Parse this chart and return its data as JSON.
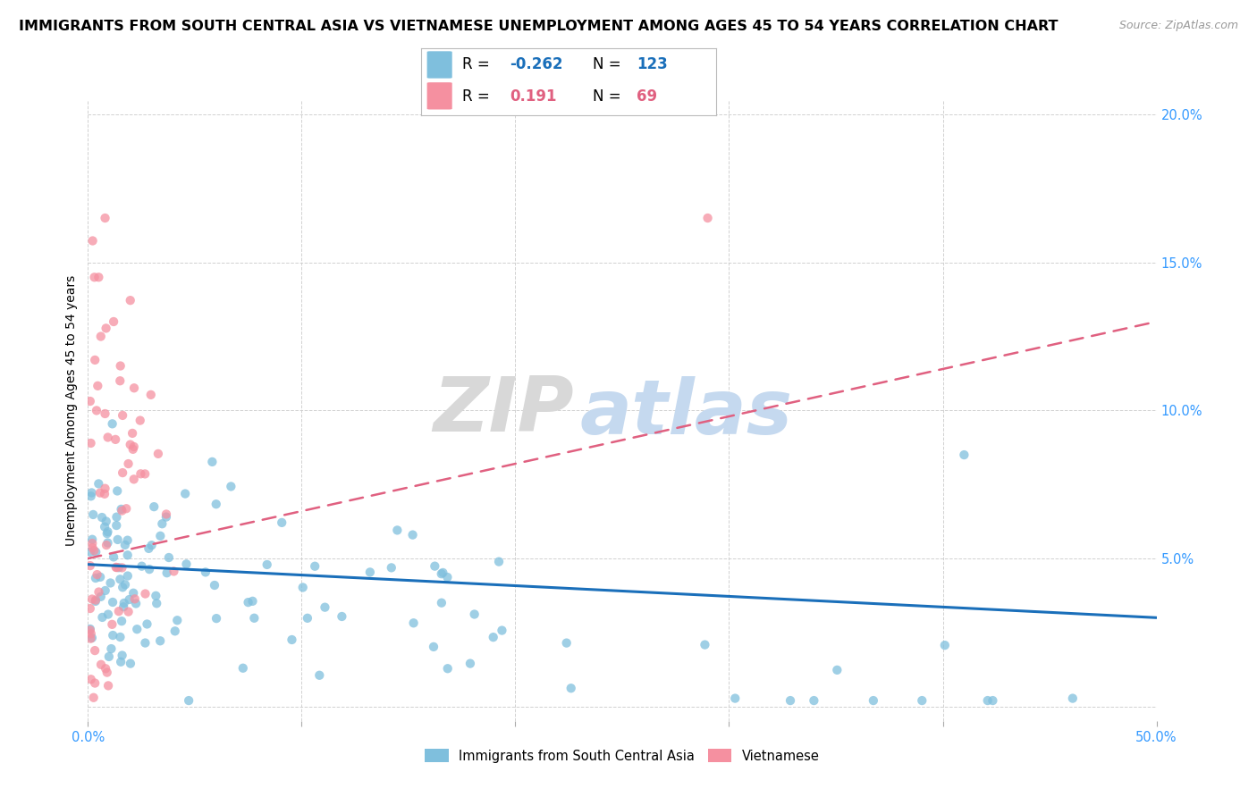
{
  "title": "IMMIGRANTS FROM SOUTH CENTRAL ASIA VS VIETNAMESE UNEMPLOYMENT AMONG AGES 45 TO 54 YEARS CORRELATION CHART",
  "source": "Source: ZipAtlas.com",
  "ylabel": "Unemployment Among Ages 45 to 54 years",
  "legend_blue_label": "Immigrants from South Central Asia",
  "legend_pink_label": "Vietnamese",
  "legend_R_blue": "-0.262",
  "legend_N_blue": "123",
  "legend_R_pink": "0.191",
  "legend_N_pink": "69",
  "watermark_zip": "ZIP",
  "watermark_atlas": "atlas",
  "xlim": [
    0,
    0.5
  ],
  "ylim": [
    -0.005,
    0.205
  ],
  "ytick_vals": [
    0.0,
    0.05,
    0.1,
    0.15,
    0.2
  ],
  "ytick_labels": [
    "",
    "5.0%",
    "10.0%",
    "15.0%",
    "20.0%"
  ],
  "xtick_vals": [
    0.0,
    0.1,
    0.2,
    0.3,
    0.4,
    0.5
  ],
  "xtick_labels": [
    "0.0%",
    "",
    "",
    "",
    "",
    "50.0%"
  ],
  "blue_color": "#7fbfdd",
  "pink_color": "#f590a0",
  "blue_trend_color": "#1a6fba",
  "pink_trend_color": "#e06080",
  "axis_tick_color": "#3399ff",
  "title_fontsize": 11.5,
  "source_fontsize": 9,
  "tick_fontsize": 10.5,
  "ylabel_fontsize": 10,
  "blue_trend_start_y": 0.048,
  "blue_trend_end_y": 0.03,
  "pink_trend_start_y": 0.05,
  "pink_trend_end_y": 0.13
}
